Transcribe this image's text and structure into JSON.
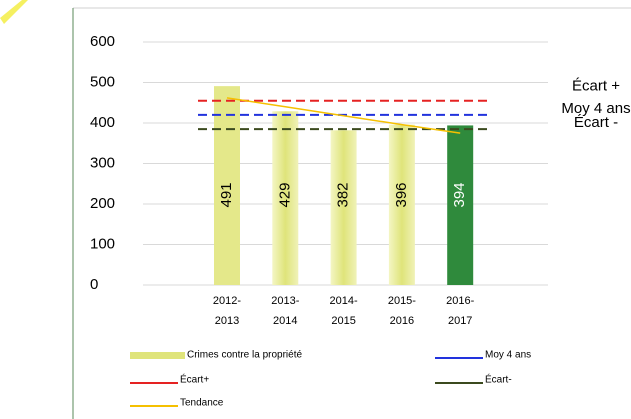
{
  "chart_data": {
    "type": "bar",
    "categories": [
      "2012- 2013",
      "2013- 2014",
      "2014- 2015",
      "2015- 2016",
      "2016- 2017"
    ],
    "series": [
      {
        "name": "Crimes contre la propriété",
        "values": [
          491,
          429,
          382,
          396,
          394
        ],
        "colors": [
          "#e4e88a",
          "#e4e88a",
          "#e4e88a",
          "#e4e88a",
          "#2f8a3c"
        ]
      }
    ],
    "reference_lines": [
      {
        "name": "Écart+",
        "label": "Écart +",
        "value": 455,
        "color": "#e52222"
      },
      {
        "name": "Moy 4 ans",
        "label": "Moy 4 ans",
        "value": 420,
        "color": "#2233dd"
      },
      {
        "name": "Écart-",
        "label": "Écart -",
        "value": 385,
        "color": "#3b4a1e"
      }
    ],
    "trend": {
      "name": "Tendance",
      "values": [
        462,
        440,
        418,
        396,
        375
      ],
      "color": "#f5c000"
    },
    "ylim": [
      0,
      600
    ],
    "yticks": [
      0,
      100,
      200,
      300,
      400,
      500,
      600
    ],
    "grid": true
  }
}
